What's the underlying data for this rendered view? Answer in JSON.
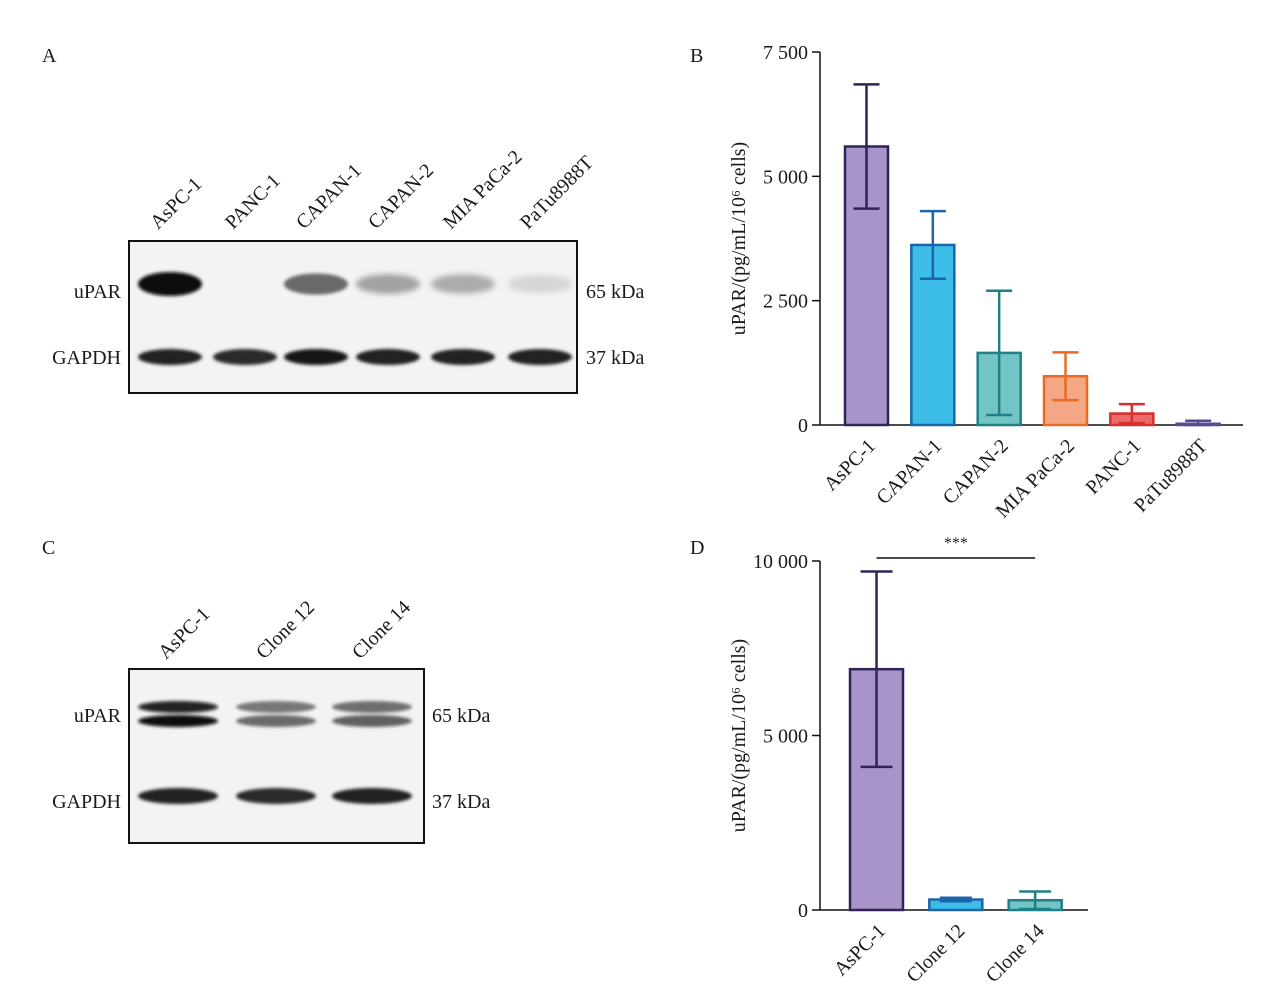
{
  "panels": {
    "A": {
      "letter": "A",
      "lanes": [
        "AsPC-1",
        "PANC-1",
        "CAPAN-1",
        "CAPAN-2",
        "MIA PaCa-2",
        "PaTu8988T"
      ],
      "rows": [
        {
          "label": "uPAR",
          "mw": "65 kDa",
          "intensity": [
            1.0,
            0.0,
            0.55,
            0.3,
            0.25,
            0.05
          ]
        },
        {
          "label": "GAPDH",
          "mw": "37 kDa",
          "intensity": [
            0.9,
            0.85,
            0.95,
            0.9,
            0.9,
            0.88
          ]
        }
      ]
    },
    "C": {
      "letter": "C",
      "lanes": [
        "AsPC-1",
        "Clone 12",
        "Clone 14"
      ],
      "rows": [
        {
          "label": "uPAR",
          "mw": "65 kDa",
          "intensity": [
            1.0,
            0.55,
            0.6
          ]
        },
        {
          "label": "GAPDH",
          "mw": "37 kDa",
          "intensity": [
            0.9,
            0.85,
            0.88
          ]
        }
      ]
    }
  },
  "chart_data": [
    {
      "panel": "B",
      "type": "bar",
      "categories": [
        "AsPC-1",
        "CAPAN-1",
        "CAPAN-2",
        "MIA PaCa-2",
        "PANC-1",
        "PaTu8988T"
      ],
      "values": [
        5600,
        3620,
        1450,
        980,
        230,
        25
      ],
      "error": [
        1250,
        680,
        1250,
        480,
        190,
        60
      ],
      "ylabel": "uPAR/(pg/mL/10⁶ cells)",
      "ylim": [
        0,
        7500
      ],
      "yticks": [
        0,
        2500,
        5000,
        7500
      ],
      "ytick_labels": [
        "0",
        "2 500",
        "5 000",
        "7 500"
      ],
      "colors": {
        "fill": [
          "#a794c9",
          "#3bbde8",
          "#72c4c5",
          "#f4a784",
          "#eb6a6a",
          "#b7a6d6"
        ],
        "stroke": [
          "#2f2358",
          "#1e64a8",
          "#1f8088",
          "#ea6a23",
          "#d72e2e",
          "#5a4a96"
        ]
      }
    },
    {
      "panel": "D",
      "type": "bar",
      "categories": [
        "AsPC-1",
        "Clone 12",
        "Clone 14"
      ],
      "values": [
        6900,
        300,
        280
      ],
      "error": [
        2800,
        50,
        250
      ],
      "ylabel": "uPAR/(pg/mL/10⁶ cells)",
      "ylim": [
        0,
        10000
      ],
      "yticks": [
        0,
        5000,
        10000
      ],
      "ytick_labels": [
        "0",
        "5 000",
        "10 000"
      ],
      "significance": {
        "from": 0,
        "to": 2,
        "label": "***"
      },
      "colors": {
        "fill": [
          "#a794c9",
          "#3bbde8",
          "#72c4c5"
        ],
        "stroke": [
          "#2f2358",
          "#1e64a8",
          "#1f8088"
        ]
      }
    }
  ]
}
